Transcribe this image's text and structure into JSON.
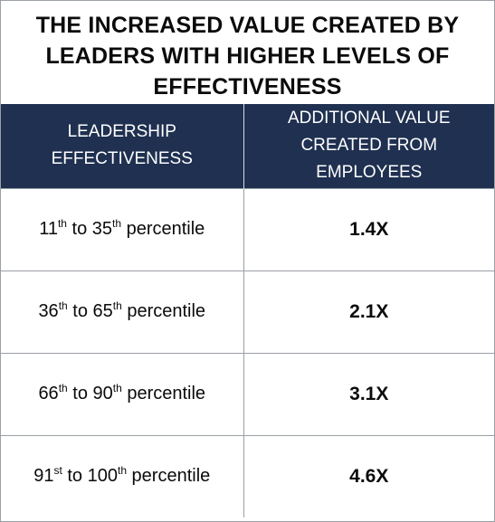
{
  "title": {
    "line1": "THE INCREASED VALUE CREATED BY",
    "line2": "LEADERS WITH HIGHER LEVELS OF",
    "line3": "EFFECTIVENESS"
  },
  "header": {
    "col1_line1": "LEADERSHIP",
    "col1_line2": "EFFECTIVENESS",
    "col2_line1": "ADDITIONAL VALUE",
    "col2_line2": "CREATED FROM",
    "col2_line3": "EMPLOYEES"
  },
  "rows": [
    {
      "from_num": "11",
      "from_suffix": "th",
      "to_word": " to ",
      "to_num": "35",
      "to_suffix": "th",
      "tail": " percentile",
      "value": "1.4X"
    },
    {
      "from_num": "36",
      "from_suffix": "th",
      "to_word": " to ",
      "to_num": "65",
      "to_suffix": "th",
      "tail": " percentile",
      "value": "2.1X"
    },
    {
      "from_num": "66",
      "from_suffix": "th",
      "to_word": " to ",
      "to_num": "90",
      "to_suffix": "th",
      "tail": " percentile",
      "value": "3.1X"
    },
    {
      "from_num": "91",
      "from_suffix": "st",
      "to_word": " to ",
      "to_num": "100",
      "to_suffix": "th",
      "tail": " percentile",
      "value": "4.6X"
    }
  ],
  "colors": {
    "header_background": "#1f3050",
    "header_text": "#ffffff",
    "body_text": "#0b0b0b",
    "border": "#9aa0a6"
  }
}
